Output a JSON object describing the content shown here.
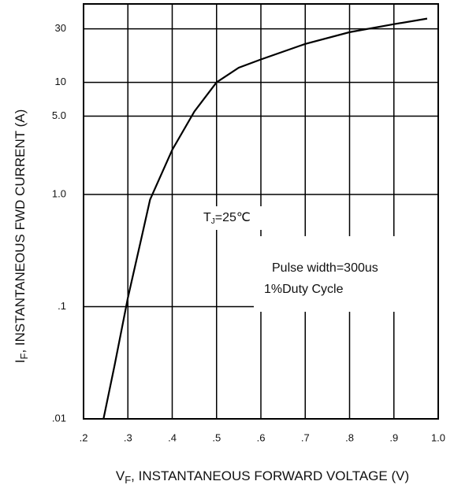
{
  "chart_data": {
    "type": "line",
    "log_y": true,
    "grid": true,
    "xlabel": {
      "main": "V",
      "sub": "F",
      "rest": ", INSTANTANEOUS FORWARD VOLTAGE (V)"
    },
    "ylabel": {
      "main": "I",
      "sub": "F",
      "rest": ", INSTANTANEOUS FWD CURRENT (A)"
    },
    "annotations": {
      "tj": {
        "main": "T",
        "sub": "J",
        "rest": "=25℃"
      },
      "pulse": "Pulse width=300us",
      "duty": "1%Duty Cycle"
    },
    "xlim": [
      0.2,
      1.0
    ],
    "xticks": [
      {
        "value": 0.2,
        "label": ".2"
      },
      {
        "value": 0.3,
        "label": ".3"
      },
      {
        "value": 0.4,
        "label": ".4"
      },
      {
        "value": 0.5,
        "label": ".5"
      },
      {
        "value": 0.6,
        "label": ".6"
      },
      {
        "value": 0.7,
        "label": ".7"
      },
      {
        "value": 0.8,
        "label": ".8"
      },
      {
        "value": 0.9,
        "label": ".9"
      },
      {
        "value": 1.0,
        "label": "1.0"
      }
    ],
    "ylim": [
      0.01,
      50
    ],
    "yticks": [
      {
        "value": 0.01,
        "label": ".01"
      },
      {
        "value": 0.1,
        "label": ".1"
      },
      {
        "value": 1,
        "label": "1.0"
      },
      {
        "value": 5,
        "label": "5.0"
      },
      10,
      30
    ],
    "series": [
      {
        "color": "#000000",
        "x": [
          0.245,
          0.27,
          0.3,
          0.33,
          0.35,
          0.4,
          0.45,
          0.5,
          0.55,
          0.6,
          0.7,
          0.8,
          0.9,
          0.975
        ],
        "values": [
          0.01,
          0.03,
          0.12,
          0.4,
          0.9,
          2.5,
          5.5,
          10,
          13.5,
          16,
          22,
          28,
          33,
          37
        ]
      }
    ]
  }
}
